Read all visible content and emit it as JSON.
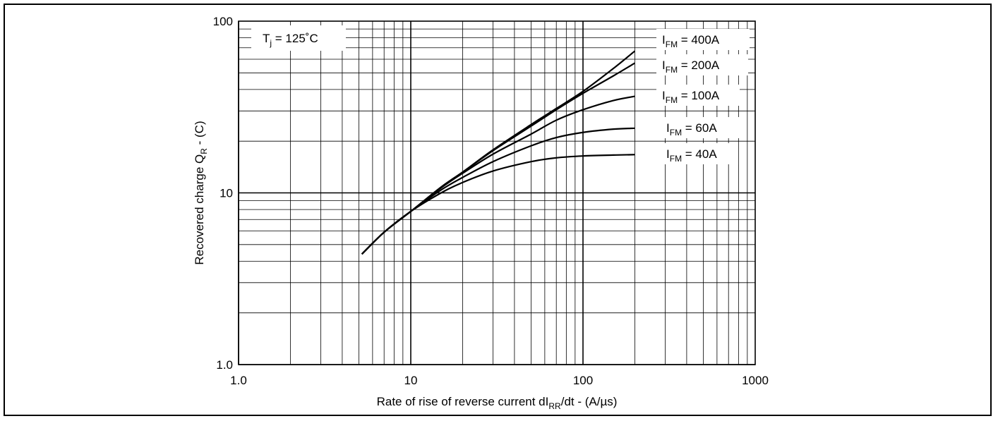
{
  "chart_data": {
    "type": "line",
    "x_scale": "log",
    "y_scale": "log",
    "xlim": [
      1,
      1000
    ],
    "ylim": [
      1,
      100
    ],
    "grid": true,
    "xlabel": {
      "main": "Rate of rise of reverse current dI",
      "sub": "RR",
      "tail": "/dt - (A/µs)"
    },
    "ylabel": {
      "main": "Recovered charge Q",
      "sub": "R",
      "tail": "  - (C)"
    },
    "annotation": {
      "main": "T",
      "sub": "j",
      "tail": " = 125˚C"
    },
    "x_tick_labels": [
      "1.0",
      "10",
      "100",
      "1000"
    ],
    "y_tick_labels": [
      "1.0",
      "10",
      "100"
    ],
    "series": [
      {
        "name": "400A",
        "label": {
          "main": "I",
          "sub": "FM",
          "tail": " = 400A"
        },
        "x": [
          5.2,
          7,
          10,
          15,
          20,
          30,
          50,
          70,
          100,
          150,
          200
        ],
        "y": [
          4.4,
          5.9,
          7.8,
          10.8,
          13.2,
          17.8,
          25.0,
          31.0,
          39.0,
          53.0,
          67.0
        ]
      },
      {
        "name": "200A",
        "label": {
          "main": "I",
          "sub": "FM",
          "tail": " = 200A"
        },
        "x": [
          5.2,
          7,
          10,
          15,
          20,
          30,
          50,
          70,
          100,
          150,
          200
        ],
        "y": [
          4.4,
          5.9,
          7.8,
          10.8,
          13.2,
          17.6,
          24.5,
          30.5,
          38.0,
          48.0,
          57.0
        ]
      },
      {
        "name": "100A",
        "label": {
          "main": "I",
          "sub": "FM",
          "tail": " = 100A"
        },
        "x": [
          5.2,
          7,
          10,
          15,
          20,
          30,
          50,
          70,
          100,
          150,
          200
        ],
        "y": [
          4.4,
          5.9,
          7.8,
          10.7,
          13.0,
          16.8,
          22.0,
          26.5,
          30.5,
          34.5,
          36.5
        ]
      },
      {
        "name": "60A",
        "label": {
          "main": "I",
          "sub": "FM",
          "tail": " = 60A"
        },
        "x": [
          5.2,
          7,
          10,
          15,
          20,
          30,
          50,
          70,
          100,
          150,
          200
        ],
        "y": [
          4.4,
          5.9,
          7.8,
          10.4,
          12.3,
          15.2,
          18.8,
          21.0,
          22.5,
          23.5,
          23.8
        ]
      },
      {
        "name": "40A",
        "label": {
          "main": "I",
          "sub": "FM",
          "tail": " = 40A"
        },
        "x": [
          5.2,
          7,
          10,
          15,
          20,
          30,
          50,
          70,
          100,
          150,
          200
        ],
        "y": [
          4.4,
          5.9,
          7.8,
          10.0,
          11.5,
          13.4,
          15.2,
          16.0,
          16.4,
          16.6,
          16.7
        ]
      }
    ]
  }
}
